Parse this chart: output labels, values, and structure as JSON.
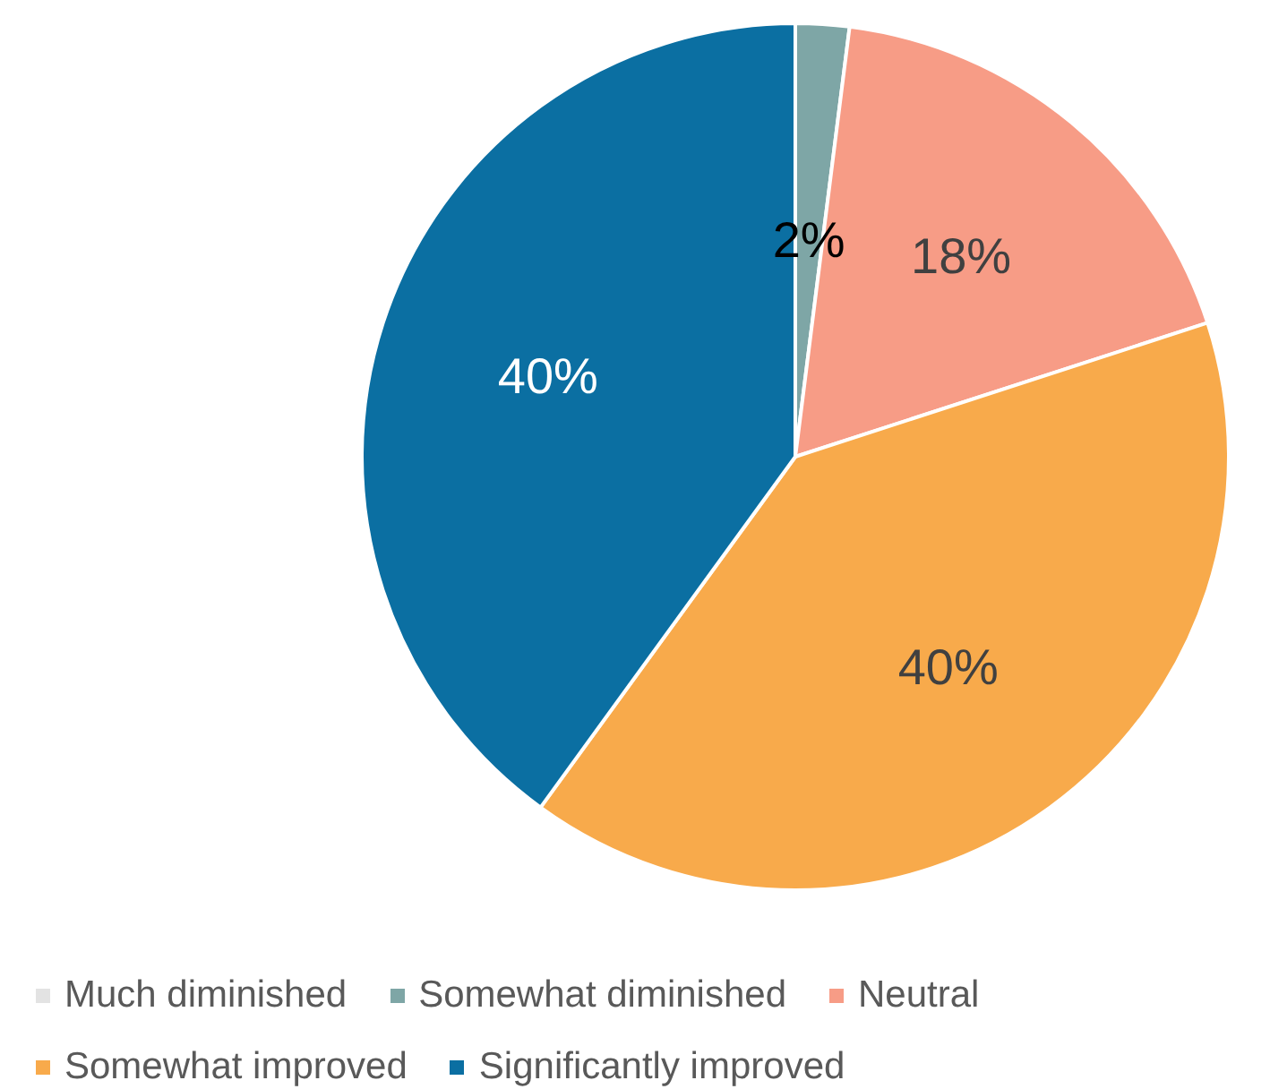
{
  "chart_data": {
    "type": "pie",
    "categories": [
      "Much diminished",
      "Somewhat diminished",
      "Neutral",
      "Somewhat improved",
      "Significantly improved"
    ],
    "values": [
      0,
      2,
      18,
      40,
      40
    ],
    "colors": [
      "#e3e3e3",
      "#7ea6a6",
      "#f79c86",
      "#f8aa4b",
      "#0b6fa2"
    ],
    "value_labels": [
      null,
      "2%",
      "18%",
      "40%",
      "40%"
    ],
    "legend": "bottom"
  }
}
